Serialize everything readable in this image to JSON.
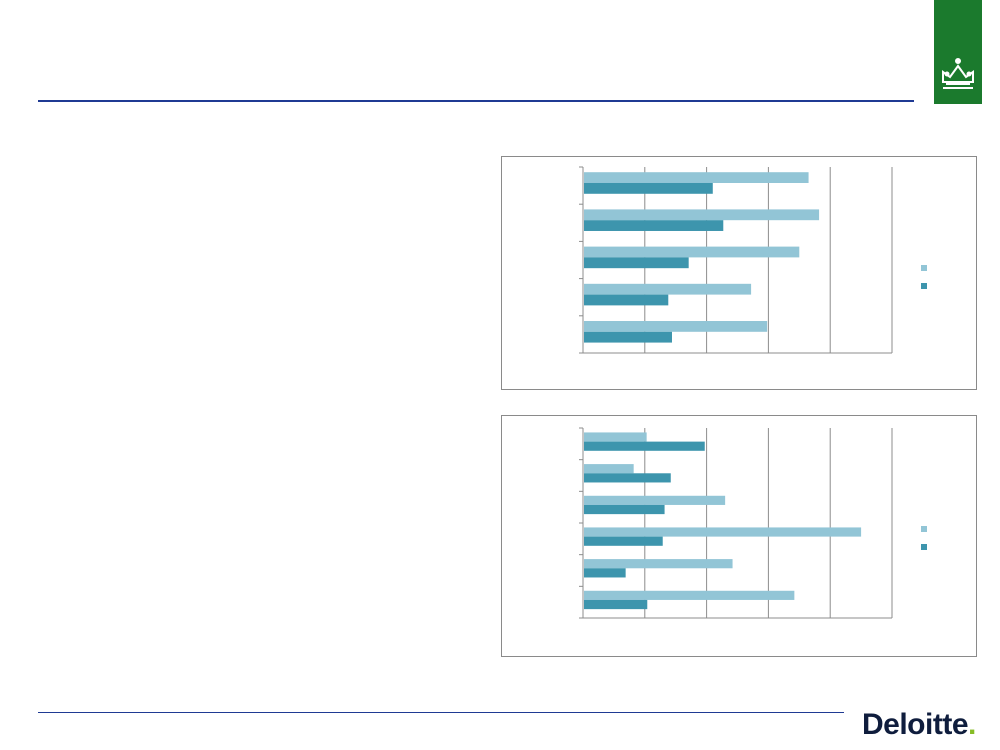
{
  "brand": {
    "logo_text": "Deloitte",
    "logo_dot": ".",
    "colors": {
      "rule": "#1f3a93",
      "crest_green": "#1b7a2d",
      "logo_dot": "#86bc25",
      "logo_text": "#0f1d3d"
    }
  },
  "icons": {
    "crest": "crown-icon"
  },
  "chart_data": [
    {
      "type": "bar",
      "orientation": "horizontal",
      "categories": [
        "",
        "",
        "",
        "",
        ""
      ],
      "series": [
        {
          "color": "#92c5d6",
          "values": [
            3.65,
            3.82,
            3.5,
            2.72,
            2.98
          ]
        },
        {
          "color": "#3d95ad",
          "values": [
            2.1,
            2.27,
            1.71,
            1.38,
            1.44
          ]
        }
      ],
      "xlim": [
        0,
        5
      ],
      "grid": true,
      "legend": "right"
    },
    {
      "type": "bar",
      "orientation": "horizontal",
      "categories": [
        "",
        "",
        "",
        "",
        "",
        ""
      ],
      "series": [
        {
          "color": "#92c5d6",
          "values": [
            1.03,
            0.82,
            2.3,
            4.5,
            2.42,
            3.42
          ]
        },
        {
          "color": "#3d95ad",
          "values": [
            1.97,
            1.42,
            1.32,
            1.29,
            0.69,
            1.04
          ]
        }
      ],
      "xlim": [
        0,
        5
      ],
      "grid": true,
      "legend": "right"
    }
  ]
}
